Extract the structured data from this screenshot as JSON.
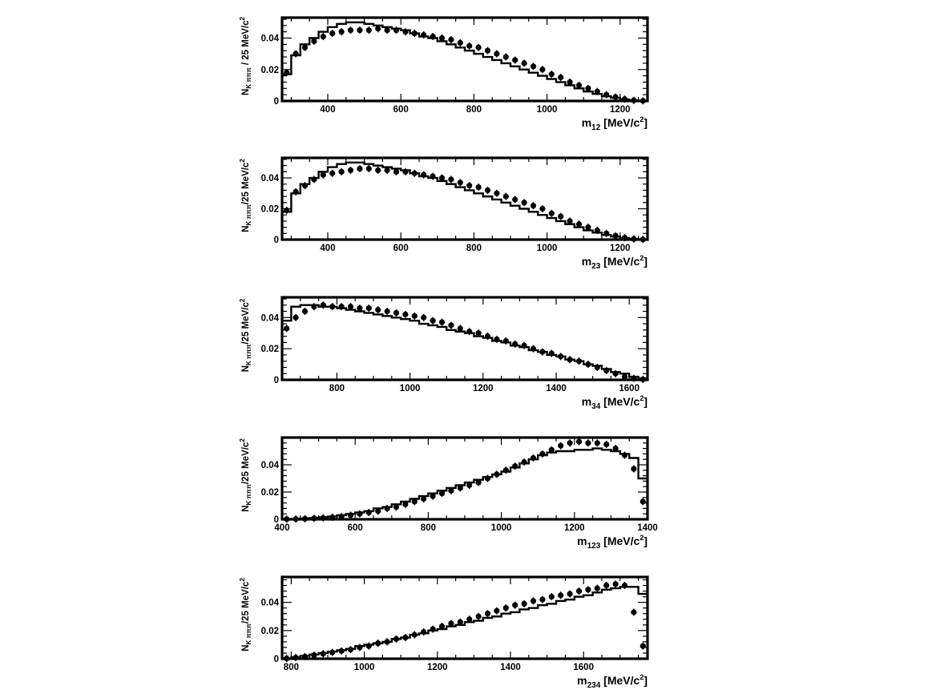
{
  "chart_data": [
    {
      "type": "line",
      "id": "m12",
      "xlabel": {
        "base": "m",
        "sub": "12",
        "unit_pre": " [MeV/c",
        "unit_sup": "2",
        "unit_post": "]"
      },
      "ylabel": {
        "base": "N",
        "sub": "K πππ",
        "mid": " / 25 MeV/c",
        "sup": "2"
      },
      "xlim": [
        275,
        1275
      ],
      "ylim": [
        0,
        0.053
      ],
      "xticks": [
        400,
        600,
        800,
        1000,
        1200
      ],
      "yticks": [
        0,
        0.02,
        0.04
      ],
      "ytick_labels": [
        "0",
        "0.02",
        "0.04"
      ],
      "xtick_labels": [
        "400",
        "600",
        "800",
        "1000",
        "1200"
      ],
      "bin_width": 25,
      "series": [
        {
          "kind": "histogram",
          "x_start": 275,
          "values": [
            0.017,
            0.029,
            0.036,
            0.04,
            0.044,
            0.047,
            0.049,
            0.05,
            0.05,
            0.049,
            0.048,
            0.047,
            0.046,
            0.045,
            0.043,
            0.041,
            0.04,
            0.038,
            0.036,
            0.034,
            0.032,
            0.03,
            0.028,
            0.026,
            0.024,
            0.022,
            0.02,
            0.018,
            0.016,
            0.014,
            0.012,
            0.01,
            0.008,
            0.006,
            0.0045,
            0.003,
            0.002,
            0.001,
            0.0004,
            0.0001
          ]
        },
        {
          "kind": "points",
          "x_start": 287.5,
          "values": [
            0.018,
            0.03,
            0.034,
            0.038,
            0.041,
            0.043,
            0.044,
            0.045,
            0.045,
            0.045,
            0.046,
            0.045,
            0.045,
            0.044,
            0.043,
            0.042,
            0.041,
            0.04,
            0.039,
            0.037,
            0.035,
            0.034,
            0.032,
            0.03,
            0.028,
            0.026,
            0.024,
            0.022,
            0.02,
            0.017,
            0.015,
            0.012,
            0.01,
            0.008,
            0.006,
            0.004,
            0.0025,
            0.0012,
            0.0004,
            0.0001
          ]
        }
      ]
    },
    {
      "type": "line",
      "id": "m23",
      "xlabel": {
        "base": "m",
        "sub": "23",
        "unit_pre": " [MeV/c",
        "unit_sup": "2",
        "unit_post": "]"
      },
      "ylabel": {
        "base": "N",
        "sub": "K πππ",
        "mid": "/25 MeV/c",
        "sup": "2"
      },
      "xlim": [
        275,
        1275
      ],
      "ylim": [
        0,
        0.053
      ],
      "xticks": [
        400,
        600,
        800,
        1000,
        1200
      ],
      "yticks": [
        0,
        0.02,
        0.04
      ],
      "ytick_labels": [
        "0",
        "0.02",
        "0.04"
      ],
      "xtick_labels": [
        "400",
        "600",
        "800",
        "1000",
        "1200"
      ],
      "bin_width": 25,
      "series": [
        {
          "kind": "histogram",
          "x_start": 275,
          "values": [
            0.018,
            0.03,
            0.036,
            0.04,
            0.044,
            0.047,
            0.049,
            0.05,
            0.05,
            0.049,
            0.048,
            0.047,
            0.046,
            0.045,
            0.043,
            0.041,
            0.04,
            0.038,
            0.036,
            0.034,
            0.032,
            0.03,
            0.028,
            0.026,
            0.024,
            0.022,
            0.02,
            0.018,
            0.016,
            0.014,
            0.012,
            0.01,
            0.008,
            0.006,
            0.0045,
            0.003,
            0.002,
            0.001,
            0.0004,
            0.0001
          ]
        },
        {
          "kind": "points",
          "x_start": 287.5,
          "values": [
            0.019,
            0.031,
            0.035,
            0.039,
            0.042,
            0.043,
            0.044,
            0.045,
            0.046,
            0.046,
            0.045,
            0.045,
            0.044,
            0.044,
            0.043,
            0.042,
            0.041,
            0.04,
            0.039,
            0.037,
            0.035,
            0.034,
            0.032,
            0.03,
            0.028,
            0.026,
            0.024,
            0.022,
            0.02,
            0.017,
            0.015,
            0.012,
            0.01,
            0.008,
            0.006,
            0.004,
            0.0025,
            0.0012,
            0.0004,
            0.0001
          ]
        }
      ]
    },
    {
      "type": "line",
      "id": "m34",
      "xlabel": {
        "base": "m",
        "sub": "34",
        "unit_pre": " [MeV/c",
        "unit_sup": "2",
        "unit_post": "]"
      },
      "ylabel": {
        "base": "N",
        "sub": "K πππ",
        "mid": "/25 MeV/c",
        "sup": "2"
      },
      "xlim": [
        650,
        1650
      ],
      "ylim": [
        0,
        0.053
      ],
      "xticks": [
        800,
        1000,
        1200,
        1400,
        1600
      ],
      "yticks": [
        0,
        0.02,
        0.04
      ],
      "ytick_labels": [
        "0",
        "0.02",
        "0.04"
      ],
      "xtick_labels": [
        "800",
        "1000",
        "1200",
        "1400",
        "1600"
      ],
      "bin_width": 25,
      "series": [
        {
          "kind": "histogram",
          "x_start": 650,
          "values": [
            0.038,
            0.047,
            0.048,
            0.048,
            0.047,
            0.047,
            0.046,
            0.045,
            0.044,
            0.043,
            0.042,
            0.041,
            0.04,
            0.039,
            0.038,
            0.036,
            0.035,
            0.034,
            0.032,
            0.031,
            0.03,
            0.028,
            0.027,
            0.025,
            0.024,
            0.022,
            0.021,
            0.019,
            0.018,
            0.016,
            0.015,
            0.013,
            0.012,
            0.01,
            0.009,
            0.007,
            0.005,
            0.004,
            0.002,
            0.001
          ]
        },
        {
          "kind": "points",
          "x_start": 662.5,
          "values": [
            0.033,
            0.04,
            0.044,
            0.047,
            0.048,
            0.047,
            0.047,
            0.047,
            0.046,
            0.046,
            0.045,
            0.044,
            0.043,
            0.042,
            0.041,
            0.04,
            0.038,
            0.037,
            0.035,
            0.033,
            0.031,
            0.03,
            0.028,
            0.026,
            0.025,
            0.023,
            0.022,
            0.02,
            0.018,
            0.017,
            0.015,
            0.013,
            0.012,
            0.01,
            0.008,
            0.006,
            0.004,
            0.002,
            0.001,
            0.0003
          ]
        }
      ]
    },
    {
      "type": "line",
      "id": "m123",
      "xlabel": {
        "base": "m",
        "sub": "123",
        "unit_pre": " [MeV/c",
        "unit_sup": "2",
        "unit_post": "]"
      },
      "ylabel": {
        "base": "N",
        "sub": "K πππ",
        "mid": "/25 MeV/c",
        "sup": "2"
      },
      "xlim": [
        400,
        1400
      ],
      "ylim": [
        0,
        0.06
      ],
      "xticks": [
        400,
        600,
        800,
        1000,
        1200,
        1400
      ],
      "yticks": [
        0,
        0.02,
        0.04
      ],
      "ytick_labels": [
        "0",
        "0.02",
        "0.04"
      ],
      "xtick_labels": [
        "400",
        "600",
        "800",
        "1000",
        "1200",
        "1400"
      ],
      "bin_width": 25,
      "series": [
        {
          "kind": "histogram",
          "x_start": 400,
          "values": [
            0.0001,
            0.0003,
            0.0006,
            0.001,
            0.0015,
            0.002,
            0.003,
            0.004,
            0.005,
            0.006,
            0.008,
            0.009,
            0.011,
            0.013,
            0.015,
            0.017,
            0.019,
            0.021,
            0.023,
            0.025,
            0.027,
            0.029,
            0.031,
            0.033,
            0.035,
            0.038,
            0.041,
            0.044,
            0.047,
            0.049,
            0.05,
            0.05,
            0.051,
            0.051,
            0.052,
            0.051,
            0.05,
            0.048,
            0.045,
            0.03
          ]
        },
        {
          "kind": "points",
          "x_start": 412.5,
          "values": [
            0.0001,
            0.0002,
            0.0004,
            0.0007,
            0.001,
            0.0015,
            0.002,
            0.003,
            0.004,
            0.005,
            0.006,
            0.008,
            0.009,
            0.011,
            0.013,
            0.015,
            0.017,
            0.019,
            0.021,
            0.023,
            0.025,
            0.027,
            0.03,
            0.033,
            0.036,
            0.039,
            0.042,
            0.045,
            0.048,
            0.051,
            0.054,
            0.056,
            0.057,
            0.056,
            0.056,
            0.055,
            0.052,
            0.047,
            0.037,
            0.013
          ]
        }
      ]
    },
    {
      "type": "line",
      "id": "m234",
      "xlabel": {
        "base": "m",
        "sub": "234",
        "unit_pre": " [MeV/c",
        "unit_sup": "2",
        "unit_post": "]"
      },
      "ylabel": {
        "base": "N",
        "sub": "K πππ",
        "mid": "/25 MeV/c",
        "sup": "2"
      },
      "xlim": [
        775,
        1775
      ],
      "ylim": [
        0,
        0.058
      ],
      "xticks": [
        800,
        1000,
        1200,
        1400,
        1600
      ],
      "yticks": [
        0,
        0.02,
        0.04
      ],
      "ytick_labels": [
        "0",
        "0.02",
        "0.04"
      ],
      "xtick_labels": [
        "800",
        "1000",
        "1200",
        "1400",
        "1600"
      ],
      "bin_width": 25,
      "series": [
        {
          "kind": "histogram",
          "x_start": 775,
          "values": [
            0.0003,
            0.001,
            0.002,
            0.003,
            0.004,
            0.005,
            0.006,
            0.007,
            0.009,
            0.01,
            0.011,
            0.012,
            0.014,
            0.015,
            0.017,
            0.018,
            0.02,
            0.021,
            0.023,
            0.024,
            0.026,
            0.027,
            0.029,
            0.03,
            0.032,
            0.033,
            0.035,
            0.036,
            0.038,
            0.039,
            0.041,
            0.042,
            0.044,
            0.045,
            0.047,
            0.049,
            0.05,
            0.051,
            0.051,
            0.046
          ]
        },
        {
          "kind": "points",
          "x_start": 787.5,
          "values": [
            0.0002,
            0.0008,
            0.0015,
            0.0025,
            0.0035,
            0.0045,
            0.0055,
            0.0065,
            0.008,
            0.009,
            0.011,
            0.012,
            0.014,
            0.015,
            0.017,
            0.019,
            0.021,
            0.023,
            0.025,
            0.026,
            0.028,
            0.03,
            0.032,
            0.034,
            0.036,
            0.038,
            0.039,
            0.041,
            0.042,
            0.044,
            0.045,
            0.046,
            0.048,
            0.049,
            0.05,
            0.052,
            0.053,
            0.052,
            0.033,
            0.009
          ]
        }
      ]
    }
  ]
}
